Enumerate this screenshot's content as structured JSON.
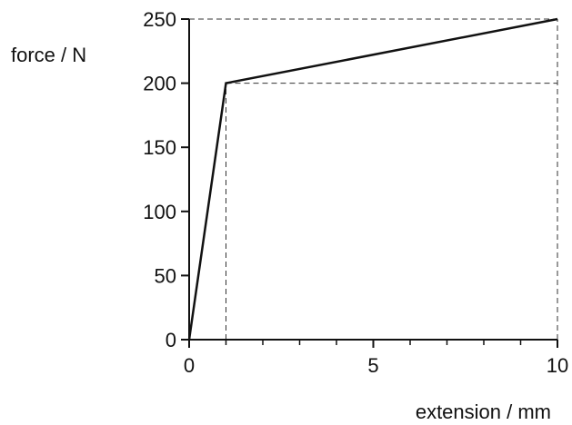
{
  "chart_data": {
    "type": "line",
    "title": "",
    "xlabel": "extension / mm",
    "ylabel": "force / N",
    "xlim": [
      0,
      10
    ],
    "ylim": [
      0,
      250
    ],
    "x_major_ticks": [
      0,
      5,
      10
    ],
    "x_tick_labels": [
      "0",
      "5",
      "10"
    ],
    "x_minor_ticks": [
      1,
      2,
      3,
      4,
      6,
      7,
      8,
      9
    ],
    "y_major_ticks": [
      0,
      50,
      100,
      150,
      200,
      250
    ],
    "y_tick_labels": [
      "0",
      "50",
      "100",
      "150",
      "200",
      "250"
    ],
    "grid": false,
    "reference_lines": [
      {
        "axis": "y",
        "value": 250,
        "x_from": 0,
        "x_to": 10
      },
      {
        "axis": "y",
        "value": 200,
        "x_from": 1,
        "x_to": 10
      },
      {
        "axis": "x",
        "value": 1,
        "y_from": 0,
        "y_to": 200
      },
      {
        "axis": "x",
        "value": 10,
        "y_from": 0,
        "y_to": 250
      }
    ],
    "series": [
      {
        "x": [
          0,
          1,
          10
        ],
        "y": [
          0,
          200,
          250
        ],
        "color": "#111111"
      }
    ]
  }
}
